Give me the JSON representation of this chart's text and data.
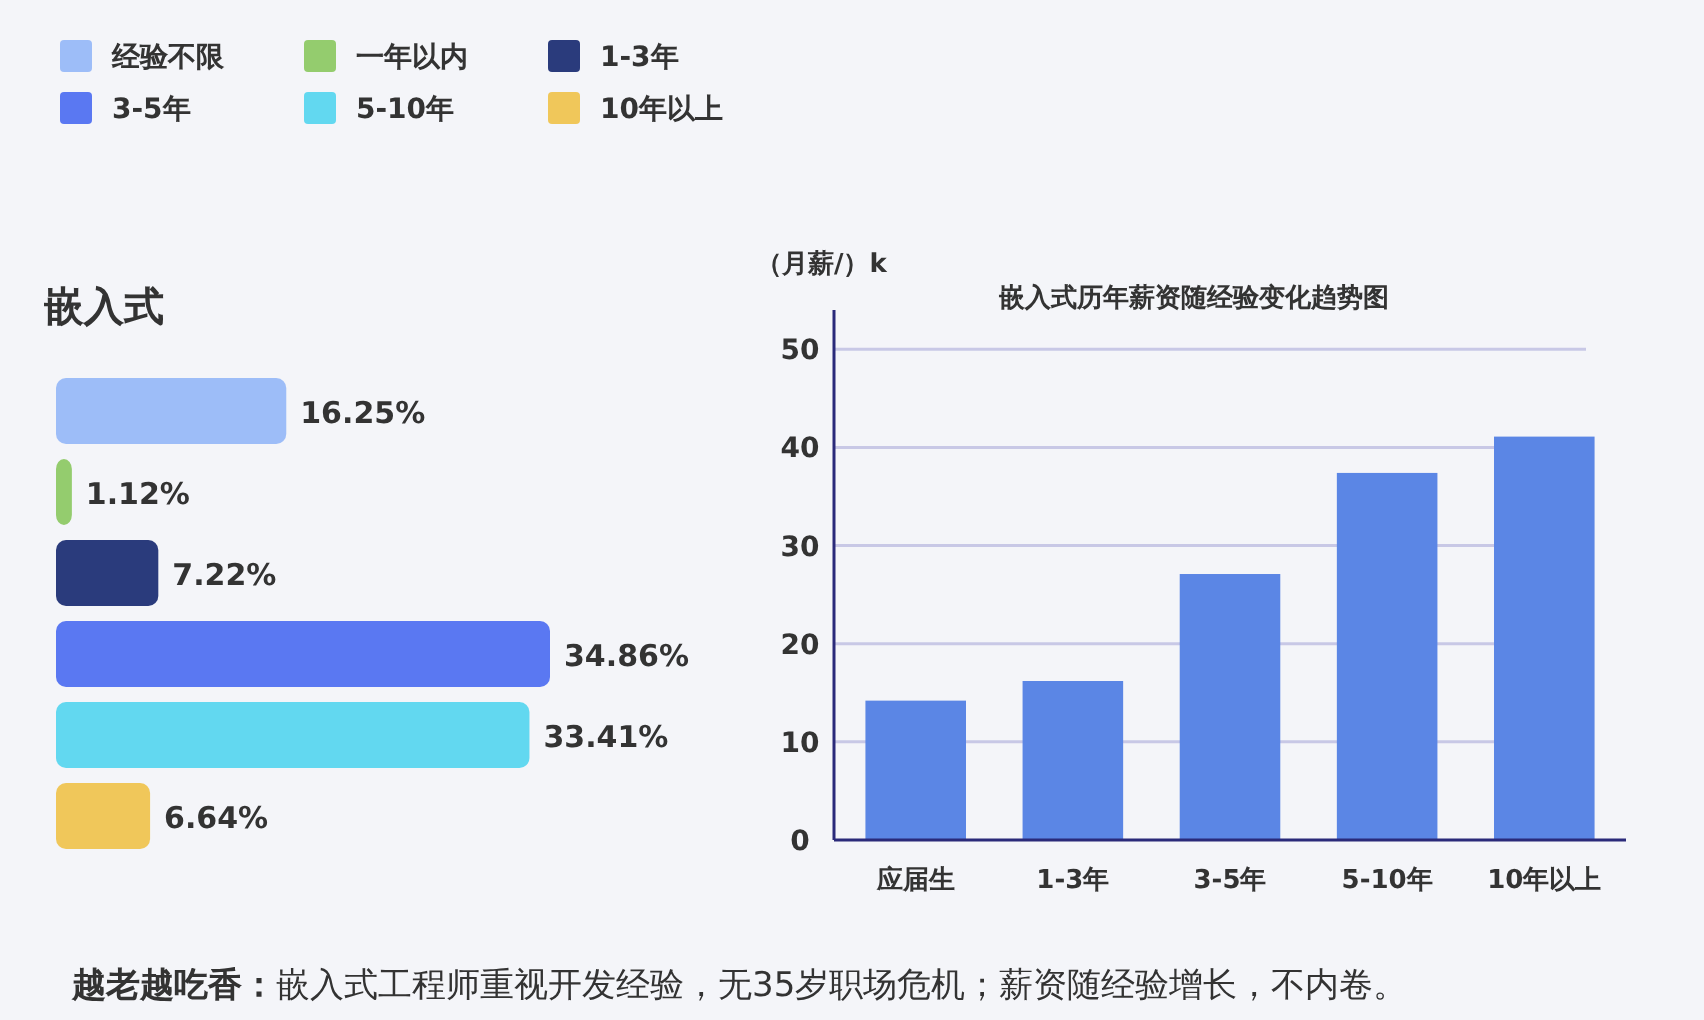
{
  "chart_data": [
    {
      "type": "bar",
      "orientation": "horizontal",
      "title": "嵌入式",
      "categories": [
        null
      ],
      "series": [
        {
          "name": "经验不限",
          "color": "#9dbdf8",
          "values": [
            16.25
          ],
          "value_labels": [
            "16.25%"
          ]
        },
        {
          "name": "一年以内",
          "color": "#94cc6e",
          "values": [
            1.12
          ],
          "value_labels": [
            "1.12%"
          ]
        },
        {
          "name": "1-3年",
          "color": "#2a3b7c",
          "values": [
            7.22
          ],
          "value_labels": [
            "7.22%"
          ]
        },
        {
          "name": "3-5年",
          "color": "#5a78f2",
          "values": [
            34.86
          ],
          "value_labels": [
            "34.86%"
          ]
        },
        {
          "name": "5-10年",
          "color": "#62d8f0",
          "values": [
            33.41
          ],
          "value_labels": [
            "33.41%"
          ]
        },
        {
          "name": "10年以上",
          "color": "#f0c75a",
          "values": [
            6.64
          ],
          "value_labels": [
            "6.64%"
          ]
        }
      ],
      "legend": "top",
      "annotations": [
        "越老越吃香：嵌入式工程师重视开发经验，无35岁职场危机；薪资随经验增长，不内卷。"
      ]
    },
    {
      "type": "bar",
      "title": "嵌入式历年薪资随经验变化趋势图",
      "ylabel": "（月薪/）k",
      "categories": [
        "应届生",
        "1-3年",
        "3-5年",
        "5-10年",
        "10年以上"
      ],
      "values": [
        14.2,
        16.2,
        27.1,
        37.4,
        41.1
      ],
      "color": "#5b86e5",
      "ylim": [
        0,
        54
      ],
      "yticks": [
        0,
        10,
        20,
        30,
        40,
        50
      ],
      "grid": "y"
    }
  ]
}
